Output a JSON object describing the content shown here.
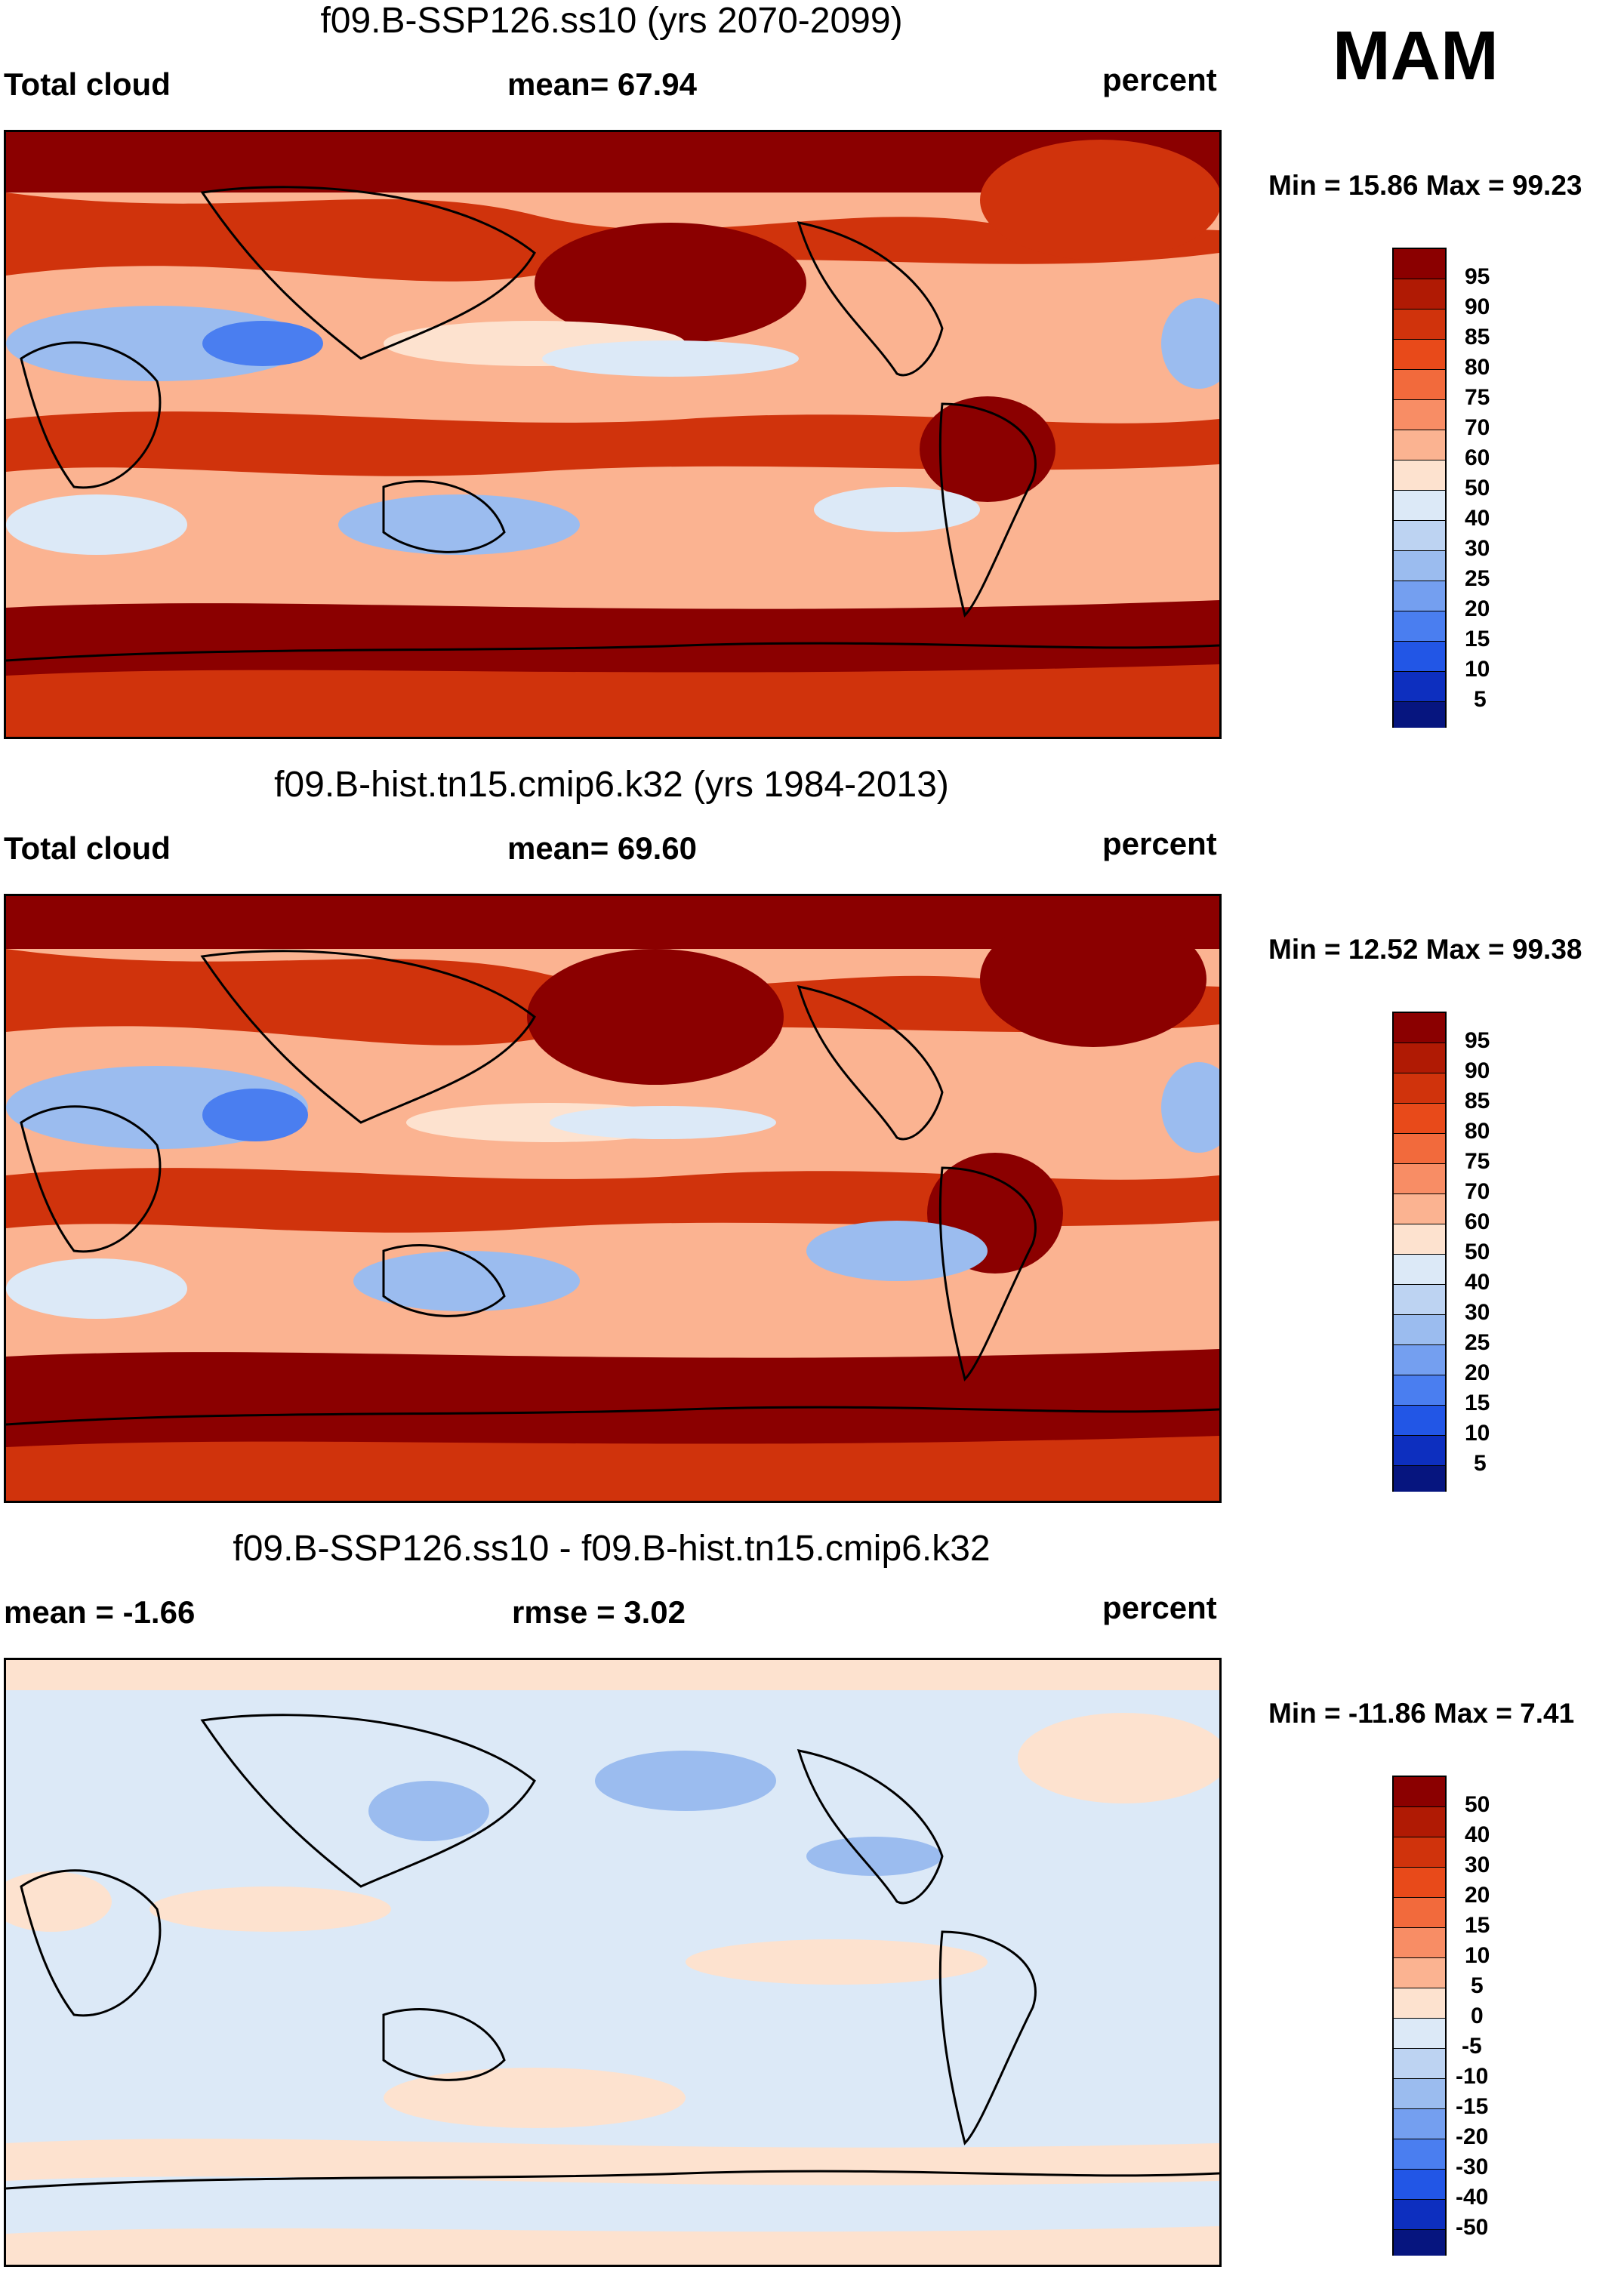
{
  "season": "MAM",
  "panels": [
    {
      "title": "f09.B-SSP126.ss10 (yrs 2070-2099)",
      "left_label": "Total cloud",
      "center_label": "mean=  67.94",
      "right_label": "percent",
      "minmax": "Min =  15.86 Max =  99.23",
      "colorbar_labels": [
        "95",
        "90",
        "85",
        "80",
        "75",
        "70",
        "60",
        "50",
        "40",
        "30",
        "25",
        "20",
        "15",
        "10",
        "5"
      ],
      "colorbar_colors": [
        "#8b0000",
        "#b01a04",
        "#d0330c",
        "#e84a1a",
        "#f26a3c",
        "#f88d65",
        "#fbb391",
        "#fde2cf",
        "#dce9f7",
        "#bdd3f2",
        "#9bbcef",
        "#749ff0",
        "#4a7ef0",
        "#2256e6",
        "#0d2fbf",
        "#06157f"
      ]
    },
    {
      "title": "f09.B-hist.tn15.cmip6.k32 (yrs 1984-2013)",
      "left_label": "Total cloud",
      "center_label": "mean=  69.60",
      "right_label": "percent",
      "minmax": "Min =  12.52 Max =  99.38",
      "colorbar_labels": [
        "95",
        "90",
        "85",
        "80",
        "75",
        "70",
        "60",
        "50",
        "40",
        "30",
        "25",
        "20",
        "15",
        "10",
        "5"
      ],
      "colorbar_colors": [
        "#8b0000",
        "#b01a04",
        "#d0330c",
        "#e84a1a",
        "#f26a3c",
        "#f88d65",
        "#fbb391",
        "#fde2cf",
        "#dce9f7",
        "#bdd3f2",
        "#9bbcef",
        "#749ff0",
        "#4a7ef0",
        "#2256e6",
        "#0d2fbf",
        "#06157f"
      ]
    },
    {
      "title": "f09.B-SSP126.ss10 - f09.B-hist.tn15.cmip6.k32",
      "left_label": "mean =  -1.66",
      "center_label": "rmse =    3.02",
      "right_label": "percent",
      "minmax": "Min = -11.86 Max =    7.41",
      "colorbar_labels": [
        "50",
        "40",
        "30",
        "20",
        "15",
        "10",
        "5",
        "0",
        "-5",
        "-10",
        "-15",
        "-20",
        "-30",
        "-40",
        "-50"
      ],
      "colorbar_colors": [
        "#8b0000",
        "#b01a04",
        "#d0330c",
        "#e84a1a",
        "#f26a3c",
        "#f88d65",
        "#fbb391",
        "#fde2cf",
        "#dce9f7",
        "#bdd3f2",
        "#9bbcef",
        "#749ff0",
        "#4a7ef0",
        "#2256e6",
        "#0d2fbf",
        "#06157f"
      ]
    }
  ],
  "map_colors": {
    "ocean_dark": "#8b0000",
    "red": "#d0330c",
    "orange": "#f26a3c",
    "salmon": "#fbb391",
    "cream": "#fde2cf",
    "light_blue": "#dce9f7",
    "blue": "#9bbcef",
    "deep_blue": "#4a7ef0",
    "coast": "#000000"
  }
}
